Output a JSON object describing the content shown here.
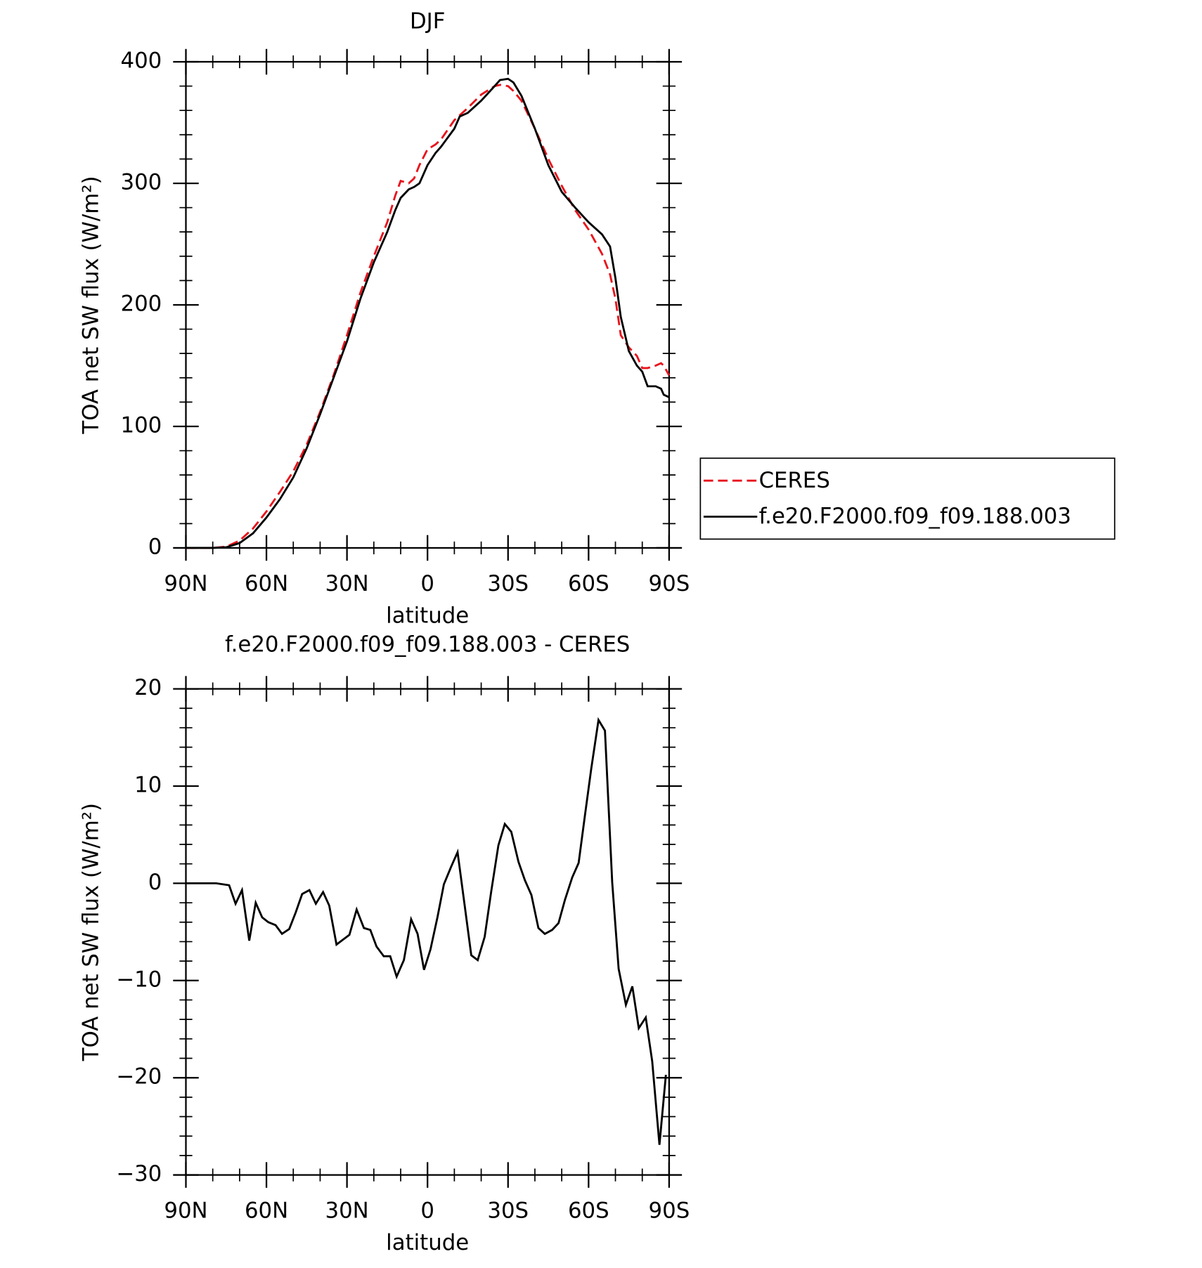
{
  "chart_data": [
    {
      "type": "line",
      "title": "DJF",
      "xlabel": "latitude",
      "ylabel": "TOA net SW flux (W/m²)",
      "xlim": [
        90,
        -90
      ],
      "xticks": [
        {
          "value": 90,
          "label": "90N"
        },
        {
          "value": 60,
          "label": "60N"
        },
        {
          "value": 30,
          "label": "30N"
        },
        0,
        {
          "value": -30,
          "label": "30S"
        },
        {
          "value": -60,
          "label": "60S"
        },
        {
          "value": -90,
          "label": "90S"
        }
      ],
      "ylim": [
        0,
        400
      ],
      "yticks": [
        0,
        100,
        200,
        300,
        400
      ],
      "x": [
        90,
        85,
        80,
        75,
        70,
        65,
        60,
        55,
        50,
        45,
        40,
        35,
        30,
        25,
        20,
        15,
        12,
        10,
        7,
        5,
        3,
        0,
        -3,
        -5,
        -10,
        -12,
        -15,
        -20,
        -25,
        -27,
        -30,
        -32,
        -35,
        -40,
        -45,
        -50,
        -55,
        -60,
        -65,
        -68,
        -70,
        -72,
        -75,
        -78,
        -80,
        -82,
        -85,
        -87,
        -88,
        -90
      ],
      "series": [
        {
          "name": "CERES",
          "color": "#e8141c",
          "dashed": true,
          "values": [
            0,
            0,
            0,
            1,
            6,
            16,
            30,
            46,
            63,
            85,
            112,
            142,
            175,
            210,
            240,
            268,
            290,
            302,
            300,
            304,
            315,
            328,
            332,
            336,
            352,
            356,
            362,
            373,
            380,
            381,
            380,
            376,
            368,
            345,
            320,
            298,
            278,
            262,
            242,
            225,
            205,
            175,
            165,
            158,
            148,
            148,
            150,
            152,
            150,
            142
          ]
        },
        {
          "name": "f.e20.F2000.f09_f09.188.003",
          "color": "#000000",
          "dashed": false,
          "values": [
            0,
            0,
            0,
            0.5,
            4,
            12,
            25,
            40,
            58,
            82,
            110,
            140,
            170,
            205,
            235,
            260,
            278,
            288,
            295,
            297,
            300,
            315,
            325,
            330,
            345,
            355,
            358,
            368,
            380,
            385,
            386,
            383,
            372,
            345,
            315,
            293,
            280,
            268,
            258,
            248,
            222,
            190,
            162,
            150,
            145,
            133,
            133,
            131,
            126,
            124
          ]
        }
      ]
    },
    {
      "type": "line",
      "title": "f.e20.F2000.f09_f09.188.003 - CERES",
      "xlabel": "latitude",
      "ylabel": "TOA net SW flux (W/m²)",
      "xlim": [
        90,
        -90
      ],
      "xticks": [
        {
          "value": 90,
          "label": "90N"
        },
        {
          "value": 60,
          "label": "60N"
        },
        {
          "value": 30,
          "label": "30N"
        },
        0,
        {
          "value": -30,
          "label": "30S"
        },
        {
          "value": -60,
          "label": "60S"
        },
        {
          "value": -90,
          "label": "90S"
        }
      ],
      "ylim": [
        -30,
        20
      ],
      "yticks": [
        {
          "value": -30,
          "label": "−30"
        },
        {
          "value": -20,
          "label": "−20"
        },
        {
          "value": -10,
          "label": "−10"
        },
        0,
        10,
        20
      ],
      "x": [
        90,
        78.7,
        73.9,
        71.5,
        69.1,
        66.4,
        64,
        61.6,
        59.3,
        56.6,
        54.2,
        51.5,
        49.1,
        46.7,
        44,
        41.6,
        38.9,
        36.6,
        33.9,
        31.5,
        29.1,
        26.4,
        23.7,
        21.3,
        19,
        16.3,
        13.9,
        11.5,
        8.8,
        6.1,
        3.7,
        1.3,
        -1.1,
        -3.7,
        -6.1,
        -8.8,
        -11.2,
        -13.9,
        -16.3,
        -18.7,
        -21.3,
        -23.7,
        -26.4,
        -28.8,
        -31.2,
        -33.9,
        -36.3,
        -38.7,
        -41.3,
        -43.7,
        -46.4,
        -48.8,
        -51.2,
        -53.9,
        -56.3,
        -58.7,
        -61,
        -63.7,
        -66.1,
        -68.8,
        -71.2,
        -73.9,
        -76.3,
        -78.7,
        -81.3,
        -83.7,
        -86.4,
        -88.8
      ],
      "series": [
        {
          "color": "#000000",
          "dashed": false,
          "values": [
            0,
            0,
            -0.2,
            -2.1,
            -0.7,
            -5.9,
            -2,
            -3.5,
            -4,
            -4.3,
            -5.2,
            -4.7,
            -3,
            -1.1,
            -0.7,
            -2.1,
            -0.9,
            -2.3,
            -6.3,
            -5.8,
            -5.3,
            -2.7,
            -4.6,
            -4.8,
            -6.5,
            -7.5,
            -7.5,
            -9.6,
            -7.9,
            -3.7,
            -5.2,
            -8.9,
            -6.8,
            -3.5,
            -0.1,
            1.7,
            3.2,
            -2.4,
            -7.4,
            -7.9,
            -5.5,
            -0.9,
            3.9,
            6.1,
            5.3,
            2.2,
            0.3,
            -1.2,
            -4.6,
            -5.2,
            -4.8,
            -4.1,
            -1.7,
            0.6,
            2.1,
            7.1,
            11.8,
            16.8,
            15.7,
            0.1,
            -8.8,
            -12.5,
            -10.6,
            -14.9,
            -13.8,
            -18.3,
            -26.9,
            -19.7
          ]
        }
      ]
    }
  ]
}
